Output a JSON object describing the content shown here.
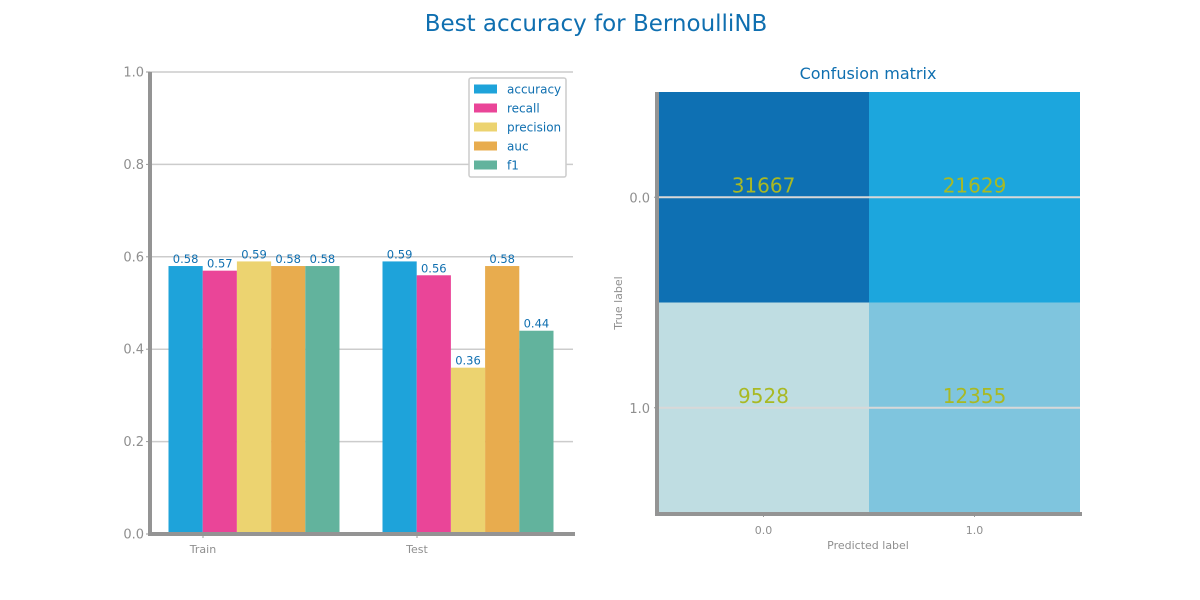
{
  "figure": {
    "title": "Best accuracy for BernoulliNB"
  },
  "chart_data": [
    {
      "type": "bar",
      "categories": [
        "Train",
        "Test"
      ],
      "series": [
        {
          "name": "accuracy",
          "values": [
            0.58,
            0.59
          ],
          "color": "#1ea3da"
        },
        {
          "name": "recall",
          "values": [
            0.57,
            0.56
          ],
          "color": "#ea4598"
        },
        {
          "name": "precision",
          "values": [
            0.59,
            0.36
          ],
          "color": "#ecd370"
        },
        {
          "name": "auc",
          "values": [
            0.58,
            0.58
          ],
          "color": "#e8ac4e"
        },
        {
          "name": "f1",
          "values": [
            0.58,
            0.44
          ],
          "color": "#62b39d"
        }
      ],
      "ylim": [
        0,
        1.0
      ],
      "yticks": [
        "0.0",
        "0.2",
        "0.4",
        "0.6",
        "0.8",
        "1.0"
      ],
      "grid": true,
      "legend_position": "top-right"
    },
    {
      "type": "heatmap",
      "title": "Confusion matrix",
      "xlabel": "Predicted label",
      "ylabel": "True label",
      "x_categories": [
        "0.0",
        "1.0"
      ],
      "y_categories": [
        "0.0",
        "1.0"
      ],
      "values": [
        [
          31667,
          21629
        ],
        [
          9528,
          12355
        ]
      ],
      "cell_colors": [
        [
          "#0e70b3",
          "#1ca6dd"
        ],
        [
          "#bfdde2",
          "#7fc5de"
        ]
      ],
      "text_color": "#a9b923"
    }
  ]
}
